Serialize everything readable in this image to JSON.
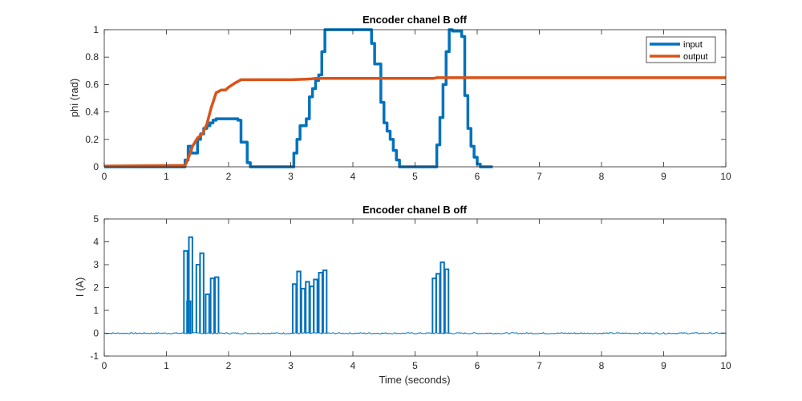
{
  "chart_data": [
    {
      "type": "line",
      "title": "Encoder chanel B off",
      "xlabel": "",
      "ylabel": "phi (rad)",
      "xlim": [
        0,
        10
      ],
      "ylim": [
        0,
        1
      ],
      "xticks": [
        "0",
        "1",
        "2",
        "3",
        "4",
        "5",
        "6",
        "7",
        "8",
        "9",
        "10"
      ],
      "yticks": [
        "0",
        "0.2",
        "0.4",
        "0.6",
        "0.8",
        "1"
      ],
      "grid": false,
      "legend": {
        "placement": "top-right",
        "entries": [
          "input",
          "output"
        ]
      },
      "series": [
        {
          "name": "input",
          "color": "#0072BD",
          "step": true,
          "x": [
            0.0,
            1.3,
            1.35,
            1.4,
            1.5,
            1.55,
            1.6,
            1.65,
            1.7,
            1.75,
            1.8,
            1.85,
            2.0,
            2.15,
            2.2,
            2.3,
            2.35,
            2.45,
            3.05,
            3.1,
            3.15,
            3.25,
            3.3,
            3.35,
            3.4,
            3.45,
            3.5,
            3.55,
            4.3,
            4.35,
            4.45,
            4.5,
            4.55,
            4.6,
            4.65,
            4.7,
            4.75,
            5.3,
            5.35,
            5.4,
            5.45,
            5.5,
            5.55,
            5.6,
            5.75,
            5.8,
            5.85,
            5.9,
            5.95,
            6.0,
            6.05,
            6.25
          ],
          "y": [
            0.0,
            0.05,
            0.15,
            0.1,
            0.2,
            0.24,
            0.28,
            0.3,
            0.32,
            0.34,
            0.35,
            0.35,
            0.35,
            0.34,
            0.18,
            0.03,
            0.0,
            0.0,
            0.1,
            0.2,
            0.3,
            0.35,
            0.51,
            0.57,
            0.63,
            0.67,
            0.84,
            1.0,
            0.9,
            0.75,
            0.47,
            0.32,
            0.26,
            0.2,
            0.12,
            0.05,
            0.0,
            0.0,
            0.16,
            0.36,
            0.6,
            0.84,
            1.0,
            0.99,
            0.95,
            0.52,
            0.28,
            0.15,
            0.07,
            0.02,
            0.0,
            0.0
          ]
        },
        {
          "name": "output",
          "color": "#D95319",
          "step": false,
          "x": [
            0.0,
            1.3,
            1.35,
            1.42,
            1.5,
            1.58,
            1.65,
            1.72,
            1.8,
            1.88,
            1.95,
            2.0,
            2.1,
            2.2,
            3.0,
            3.3,
            3.4,
            4.0,
            5.3,
            5.35,
            6.0,
            7.0,
            10.0
          ],
          "y": [
            0.005,
            0.01,
            0.06,
            0.15,
            0.21,
            0.24,
            0.31,
            0.43,
            0.54,
            0.56,
            0.56,
            0.58,
            0.61,
            0.635,
            0.635,
            0.64,
            0.645,
            0.645,
            0.645,
            0.65,
            0.65,
            0.65,
            0.65
          ]
        }
      ]
    },
    {
      "type": "line",
      "title": "Encoder chanel B off",
      "xlabel": "Time (seconds)",
      "ylabel": "I (A)",
      "xlim": [
        0,
        10
      ],
      "ylim": [
        -1,
        5
      ],
      "xticks": [
        "0",
        "1",
        "2",
        "3",
        "4",
        "5",
        "6",
        "7",
        "8",
        "9",
        "10"
      ],
      "yticks": [
        "-1",
        "0",
        "1",
        "2",
        "3",
        "4",
        "5"
      ],
      "grid": false,
      "baseline": 0.0,
      "noise_amplitude": 0.03,
      "series": [
        {
          "name": "",
          "color": "#0072BD",
          "pulses": [
            {
              "x": 1.31,
              "y": 3.6
            },
            {
              "x": 1.36,
              "y": 1.4
            },
            {
              "x": 1.39,
              "y": 4.2
            },
            {
              "x": 1.51,
              "y": 3.0
            },
            {
              "x": 1.57,
              "y": 3.5
            },
            {
              "x": 1.66,
              "y": 1.7
            },
            {
              "x": 1.74,
              "y": 2.4
            },
            {
              "x": 1.81,
              "y": 2.45
            },
            {
              "x": 3.06,
              "y": 2.15
            },
            {
              "x": 3.13,
              "y": 2.7
            },
            {
              "x": 3.2,
              "y": 1.95
            },
            {
              "x": 3.27,
              "y": 2.25
            },
            {
              "x": 3.34,
              "y": 2.05
            },
            {
              "x": 3.4,
              "y": 2.35
            },
            {
              "x": 3.48,
              "y": 2.65
            },
            {
              "x": 3.55,
              "y": 2.75
            },
            {
              "x": 5.31,
              "y": 2.4
            },
            {
              "x": 5.37,
              "y": 2.6
            },
            {
              "x": 5.44,
              "y": 3.1
            },
            {
              "x": 5.51,
              "y": 2.8
            }
          ]
        }
      ]
    }
  ]
}
